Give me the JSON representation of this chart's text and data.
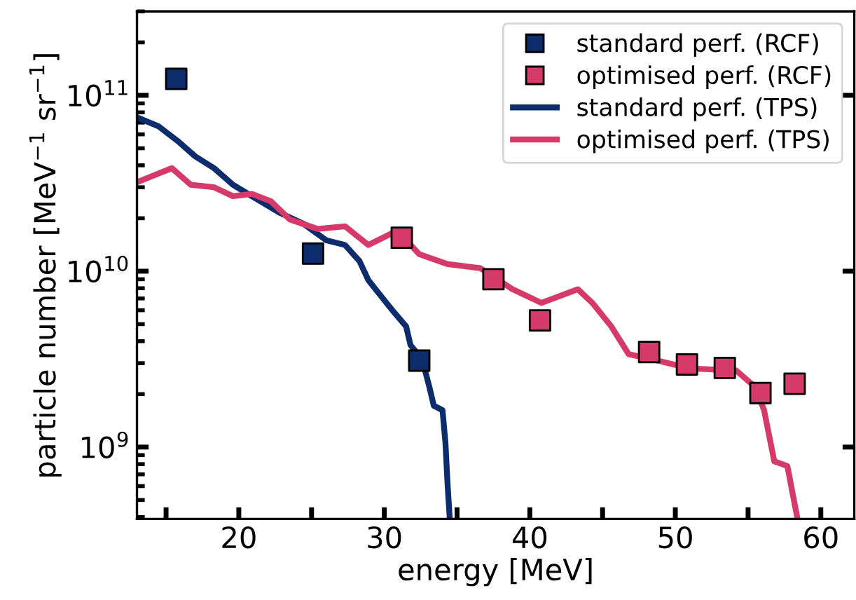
{
  "chart_data": {
    "type": "scatter",
    "xlabel": "energy [MeV]",
    "ylabel": "particle number [MeV$^{−1}$ sr$^{−1}$]",
    "log": "y",
    "xlim": [
      13,
      62.3
    ],
    "ylim": [
      390000000,
      300000000000
    ],
    "xticks": [
      {
        "value": 15,
        "label": null
      },
      20,
      {
        "value": 25,
        "label": null
      },
      30,
      {
        "value": 35,
        "label": null
      },
      40,
      {
        "value": 45,
        "label": null
      },
      50,
      {
        "value": 55,
        "label": null
      },
      60
    ],
    "yticks": [
      {
        "value": 1000000000,
        "label": "10$^{9}$"
      },
      {
        "value": 10000000000,
        "label": "10$^{10}$"
      },
      {
        "value": 100000000000,
        "label": "10$^{11}$"
      }
    ],
    "grid": false,
    "legend": "top right",
    "series": [
      {
        "name": "standard perf. (RCF)",
        "marker": "square",
        "color": "#0d2c6c",
        "x": [
          15.7,
          25.1,
          32.4
        ],
        "values": [
          124000000000,
          12600000000,
          3100000000
        ]
      },
      {
        "name": "optimised perf. (RCF)",
        "marker": "square",
        "color": "#d63a6a",
        "x": [
          31.2,
          37.5,
          40.7,
          48.2,
          50.8,
          53.4,
          55.85,
          58.2
        ],
        "values": [
          15500000000,
          9000000000,
          5250000000,
          3470000000,
          2950000000,
          2820000000,
          2030000000,
          2290000000
        ]
      },
      {
        "name": "standard perf. (TPS)",
        "type": "line",
        "color": "#0d2c6c",
        "x": [
          13.0,
          14.5,
          15.8,
          17.0,
          18.3,
          19.6,
          20.9,
          22.8,
          24.4,
          26.0,
          27.3,
          28.3,
          28.9,
          29.9,
          30.7,
          31.5,
          31.8,
          32.6,
          33.1,
          33.4,
          34.0,
          34.2,
          34.35,
          34.5
        ],
        "values": [
          75000000000,
          66500000000,
          55000000000,
          45000000000,
          38500000000,
          31000000000,
          26700000000,
          21500000000,
          18700000000,
          15000000000,
          14100000000,
          11400000000,
          8900000000,
          7000000000,
          5800000000,
          4850000000,
          3800000000,
          3160000000,
          2190000000,
          1720000000,
          1620000000,
          1060000000,
          610000000,
          390000000
        ]
      },
      {
        "name": "optimised perf. (TPS)",
        "type": "line",
        "color": "#d63a6a",
        "x": [
          13.0,
          14.5,
          15.4,
          16.7,
          18.3,
          19.6,
          20.9,
          22.2,
          23.5,
          25.4,
          27.3,
          28.9,
          30.5,
          31.8,
          32.4,
          34.3,
          36.6,
          38.8,
          40.8,
          43.3,
          44.3,
          45.6,
          46.8,
          48.4,
          51.0,
          54.2,
          55.5,
          56.1,
          56.8,
          57.7,
          58.4
        ],
        "values": [
          32000000000,
          36000000000,
          38500000000,
          31000000000,
          30000000000,
          26700000000,
          27500000000,
          25000000000,
          19700000000,
          17400000000,
          18000000000,
          14100000000,
          16400000000,
          14100000000,
          12500000000,
          11000000000,
          10400000000,
          7900000000,
          6600000000,
          7900000000,
          6600000000,
          4850000000,
          3370000000,
          3160000000,
          2800000000,
          2720000000,
          2190000000,
          1620000000,
          830000000,
          780000000,
          390000000
        ]
      }
    ]
  }
}
